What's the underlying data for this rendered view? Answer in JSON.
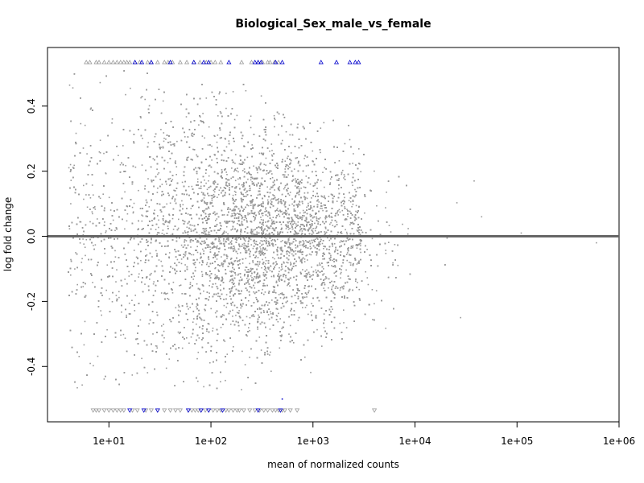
{
  "chart_data": {
    "type": "scatter",
    "title": "Biological_Sex_male_vs_female",
    "xlabel": "mean of normalized counts",
    "ylabel": "log fold change",
    "x_scale": "log10",
    "xlim": [
      2.5,
      1000000
    ],
    "ylim": [
      -0.57,
      0.58
    ],
    "x_ticks": [
      {
        "value": 10,
        "label": "1e+01"
      },
      {
        "value": 100,
        "label": "1e+02"
      },
      {
        "value": 1000,
        "label": "1e+03"
      },
      {
        "value": 10000,
        "label": "1e+04"
      },
      {
        "value": 100000,
        "label": "1e+05"
      },
      {
        "value": 1000000,
        "label": "1e+06"
      }
    ],
    "y_ticks": [
      {
        "value": -0.4,
        "label": "-0.4"
      },
      {
        "value": -0.2,
        "label": "-0.2"
      },
      {
        "value": 0.0,
        "label": "0.0"
      },
      {
        "value": 0.2,
        "label": "0.2"
      },
      {
        "value": 0.4,
        "label": "0.4"
      }
    ],
    "reference_line": {
      "y": 0,
      "color": "#666666"
    },
    "grid": false,
    "colors": {
      "nonsignificant": "#9a9a9a",
      "significant": "#0000cc"
    },
    "out_of_range_cap": {
      "top": 0.535,
      "bottom": -0.535
    },
    "series": [
      {
        "kind": "nonsignificant-cloud",
        "color": "#9a9a9a",
        "approx_point_count": 15000,
        "x_range": [
          4,
          30000
        ],
        "x_density_peak": 300,
        "y_spread_at_low_counts": 0.45,
        "y_spread_at_high_counts": 0.08
      },
      {
        "kind": "nonsignificant-outliers",
        "color": "#9a9a9a",
        "points": [
          {
            "x": 28000,
            "y": -0.25
          },
          {
            "x": 38000,
            "y": 0.17
          },
          {
            "x": 45000,
            "y": 0.06
          },
          {
            "x": 65000,
            "y": -0.0
          },
          {
            "x": 110000,
            "y": 0.01
          },
          {
            "x": 600000,
            "y": -0.02
          }
        ]
      },
      {
        "kind": "capped-top-grey",
        "color": "#9a9a9a",
        "x": [
          6,
          6.5,
          7.5,
          8,
          9,
          10,
          11,
          12,
          13,
          14,
          15,
          16,
          18,
          20,
          24,
          26,
          30,
          35,
          38,
          42,
          50,
          58,
          68,
          78,
          90,
          100,
          110,
          125,
          200,
          250,
          290,
          320,
          360,
          380,
          420,
          460
        ]
      },
      {
        "kind": "capped-top-significant",
        "color": "#0000cc",
        "x": [
          18,
          21,
          26,
          40,
          68,
          85,
          95,
          150,
          270,
          290,
          310,
          430,
          500,
          1200,
          1700,
          2300,
          2600,
          2800
        ]
      },
      {
        "kind": "capped-bottom-grey",
        "color": "#9a9a9a",
        "x": [
          7,
          7.5,
          8,
          9,
          10,
          11,
          12,
          13,
          14,
          17,
          19,
          23,
          26,
          30,
          35,
          40,
          45,
          50,
          60,
          65,
          70,
          75,
          80,
          88,
          95,
          105,
          115,
          125,
          140,
          150,
          165,
          180,
          190,
          210,
          240,
          270,
          300,
          330,
          360,
          400,
          430,
          460,
          500,
          530,
          600,
          700,
          4000
        ]
      },
      {
        "kind": "capped-bottom-significant",
        "color": "#0000cc",
        "x": [
          16,
          22,
          30,
          60,
          80,
          95,
          130,
          290,
          480
        ]
      },
      {
        "kind": "significant-inrange",
        "color": "#0000cc",
        "points": [
          {
            "x": 500,
            "y": -0.5
          }
        ]
      }
    ]
  }
}
